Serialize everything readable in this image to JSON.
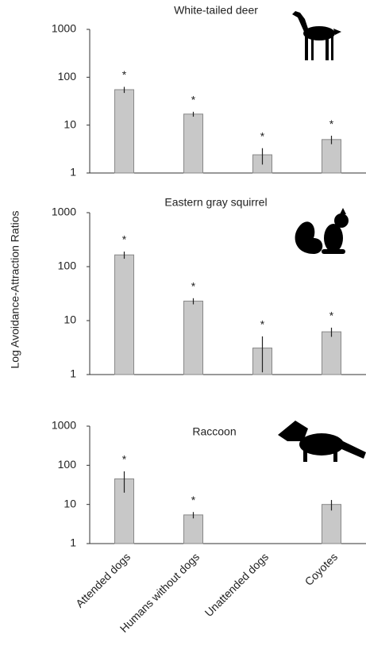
{
  "y_label": "Log Avoidance-Attraction Ratios",
  "categories": [
    "Attended dogs",
    "Humans without dogs",
    "Unattended dogs",
    "Coyotes"
  ],
  "chart_data": [
    {
      "type": "bar",
      "title": "White-tailed deer",
      "log": true,
      "color": "#c8c8c8",
      "values": [
        55,
        17,
        2.4,
        5
      ],
      "errors": [
        8,
        2,
        0.9,
        1
      ],
      "significance": [
        "*",
        "*",
        "*",
        "*"
      ],
      "ylim": [
        1,
        1000
      ],
      "yticks": [
        1,
        10,
        100,
        1000
      ]
    },
    {
      "type": "bar",
      "title": "Eastern gray squirrel",
      "log": true,
      "color": "#c8c8c8",
      "values": [
        165,
        23,
        3.1,
        6.2
      ],
      "errors": [
        25,
        3,
        2,
        1.2
      ],
      "significance": [
        "*",
        "*",
        "*",
        "*"
      ],
      "ylim": [
        1,
        1000
      ],
      "yticks": [
        1,
        10,
        100,
        1000
      ]
    },
    {
      "type": "bar",
      "title": "Raccoon",
      "log": true,
      "color": "#c8c8c8",
      "values": [
        45,
        5.4,
        null,
        10
      ],
      "errors": [
        25,
        1,
        null,
        3
      ],
      "significance": [
        "*",
        "*",
        null,
        null
      ],
      "ylim": [
        1,
        1000
      ],
      "yticks": [
        1,
        10,
        100,
        1000
      ]
    }
  ]
}
